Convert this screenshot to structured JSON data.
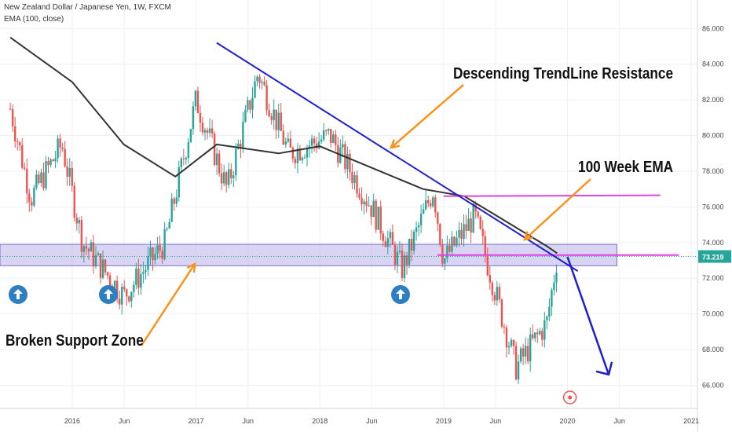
{
  "header": {
    "title": "New Zealand Dollar / Japanese Yen, 1W, FXCM",
    "indicator": "EMA (100, close)"
  },
  "annotations": {
    "trendline": "Descending TrendLine Resistance",
    "ema": "100 Week EMA",
    "zone": "Broken Support Zone"
  },
  "colors": {
    "up": "#26a69a",
    "down": "#ef5350",
    "ema": "#333333",
    "trendline": "#1f1fd0",
    "horizontal": "#e040e0",
    "zone": "#b8b0e8",
    "arrow_annotation": "#f7931e",
    "marker_arrow": "#2e7fc1",
    "price_label": "#26a69a"
  },
  "icons": [
    "arrow-up-circle-icon",
    "arrow-up-circle-icon",
    "arrow-up-circle-icon",
    "target-circle-icon"
  ],
  "chart_data": {
    "type": "candlestick",
    "symbol": "NZDJPY",
    "timeframe": "1W",
    "y_ticks": [
      "66.000",
      "68.000",
      "70.000",
      "72.000",
      "74.000",
      "76.000",
      "78.000",
      "80.000",
      "82.000",
      "84.000",
      "86.000"
    ],
    "ylim": [
      64.7,
      87.6
    ],
    "x_ticks": [
      "2016",
      "Jun",
      "2017",
      "Jun",
      "2018",
      "Jun",
      "2019",
      "Jun",
      "2020",
      "Jun",
      "2021"
    ],
    "last_price": "73.219",
    "close_path": [
      [
        "2015-07",
        81.5
      ],
      [
        "2015-09",
        76.5
      ],
      [
        "2015-12",
        79.5
      ],
      [
        "2016-02",
        74.0
      ],
      [
        "2016-06",
        71.0
      ],
      [
        "2016-10",
        74.0
      ],
      [
        "2017-01",
        82.0
      ],
      [
        "2017-04",
        77.0
      ],
      [
        "2017-07",
        83.5
      ],
      [
        "2017-10",
        79.0
      ],
      [
        "2018-02",
        80.0
      ],
      [
        "2018-06",
        76.0
      ],
      [
        "2018-09",
        72.5
      ],
      [
        "2018-12",
        77.0
      ],
      [
        "2019-01",
        73.0
      ],
      [
        "2019-04",
        75.5
      ],
      [
        "2019-08",
        67.0
      ],
      [
        "2019-11",
        69.5
      ],
      [
        "2019-12",
        73.2
      ]
    ],
    "series": [
      {
        "name": "EMA (100, close)",
        "x": [
          "2015-07",
          "2016-01",
          "2016-06",
          "2016-11",
          "2017-03",
          "2017-09",
          "2018-01",
          "2018-06",
          "2018-11",
          "2019-03",
          "2019-07",
          "2019-11",
          "2019-12"
        ],
        "values": [
          85.5,
          83.0,
          79.5,
          77.7,
          79.5,
          79.0,
          79.4,
          78.2,
          77.0,
          76.6,
          75.2,
          73.8,
          73.4
        ]
      }
    ],
    "support_zone": [
      72.7,
      73.9
    ],
    "horizontal_lines": [
      76.6,
      73.3
    ],
    "trendline": {
      "from": [
        "2017-03",
        85.2
      ],
      "to": [
        "2020-02",
        72.4
      ]
    },
    "projection": {
      "from": [
        "2020-01",
        73.2
      ],
      "to": [
        "2020-05",
        66.6
      ]
    }
  }
}
